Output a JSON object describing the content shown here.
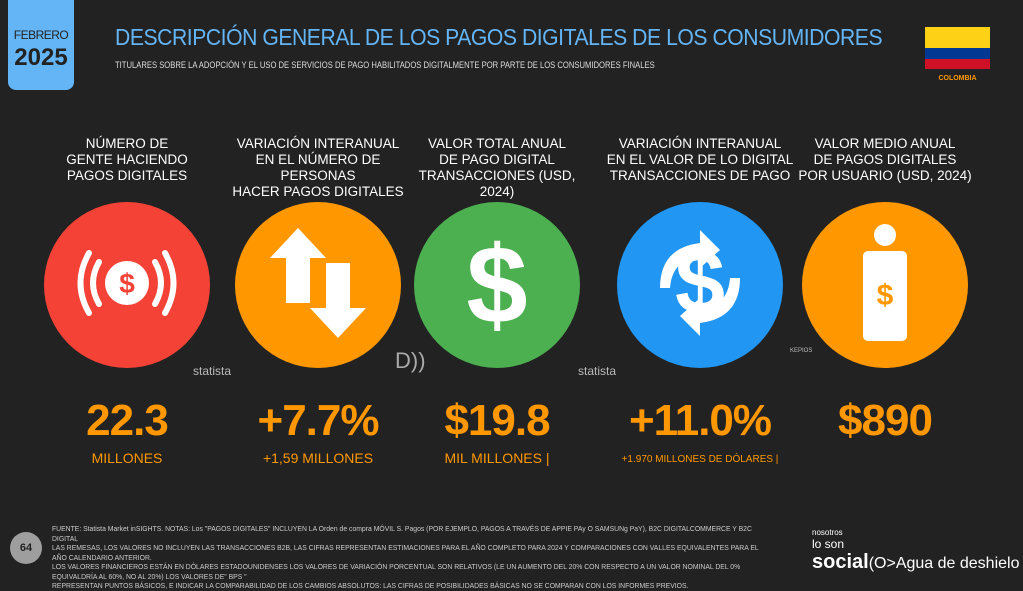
{
  "header": {
    "month": "FEBRERO",
    "year": "2025",
    "title": "DESCRIPCIÓN GENERAL DE LOS PAGOS DIGITALES DE LOS CONSUMIDORES",
    "subtitle": "TITULARES SOBRE LA ADOPCIÓN Y EL USO DE SERVICIOS DE PAGO HABILITADOS DIGITALMENTE POR PARTE DE LOS CONSUMIDORES FINALES",
    "country": "COLOMBIA"
  },
  "colors": {
    "red": "#f44336",
    "orange": "#ff9800",
    "green": "#4caf50",
    "blue": "#2196f3",
    "title": "#64b5f6"
  },
  "stats": [
    {
      "heading": [
        "NÚMERO DE",
        "GENTE HACIENDO",
        "PAGOS DIGITALES"
      ],
      "value": "22.3",
      "label": "MILLONES",
      "icon": "payment-signal-icon",
      "color": "#f44336"
    },
    {
      "heading": [
        "VARIACIÓN INTERANUAL",
        "EN EL NÚMERO DE PERSONAS",
        "HACER PAGOS DIGITALES"
      ],
      "value": "+7.7%",
      "label": "+1,59 MILLONES",
      "icon": "up-down-arrows-icon",
      "color": "#ff9800"
    },
    {
      "heading": [
        "VALOR TOTAL ANUAL",
        "DE PAGO DIGITAL",
        "TRANSACCIONES (USD, 2024)"
      ],
      "value": "$19.8",
      "label": "MIL MILLONES |",
      "icon": "dollar-icon",
      "color": "#4caf50"
    },
    {
      "heading": [
        "VARIACIÓN INTERANUAL",
        "EN EL VALOR DE LO DIGITAL",
        "TRANSACCIONES DE PAGO"
      ],
      "value": "+11.0%",
      "label": "+1.970 MILLONES DE DÓLARES |",
      "icon": "dollar-cycle-icon",
      "color": "#2196f3"
    },
    {
      "heading": [
        "VALOR MEDIO ANUAL",
        "DE PAGOS DIGITALES",
        "POR USUARIO (USD, 2024)"
      ],
      "value": "$890",
      "label": "",
      "icon": "person-dollar-icon",
      "color": "#ff9800"
    }
  ],
  "watermarks": {
    "statista": "statista",
    "kepios": "KEPIOS"
  },
  "footer": {
    "page": "64",
    "lines": [
      "FUENTE: Statista Market inSIGHTS. NOTAS: Los \"PAGOS DIGITALES\" INCLUYEN LA Orden de compra MÓVIL S. Pagos (POR EJEMPLO, PAGOS A TRAVÉS DE APPIE PAy O SAMSUNg PaY), B2C DIGITALCOMMERCE Y B2C DIGITAL",
      "LAS REMESAS, LOS VALORES NO INCLUYEN LAS TRANSACCIONES B2B, LAS CIFRAS REPRESENTAN ESTIMACIONES PARA EL AÑO COMPLETO PARA 2024 Y COMPARACIONES CON VALLES EQUIVALENTES PARA EL AÑO CALENDARIO ANTERIOR.",
      "LOS VALORES FINANCIEROS ESTÁN EN DÓLARES ESTADOUNIDENSES LOS VALORES DE VARIACIÓN PORCENTUAL SON RELATIVOS (LE UN AUMENTO DEL 20% CON RESPECTO A UN VALOR NOMINAL DEL 0% EQUIVALDRÍA AL 60%, NO AL 20%) LOS VALORES DE\" BPS \"",
      "REPRESENTAN PUNTOS BÁSICOS, E INDICAR LA COMPARABILIDAD DE LOS CAMBIOS ABSOLUTOS: LAS CIFRAS DE POSIBILIDADES BÁSICAS NO SE COMPARAN CON LOS INFORMES PREVIOS."
    ]
  },
  "brand": {
    "small": "nosotros",
    "mid": "lo son",
    "big": "social",
    "tail": "(O>Agua de deshielo"
  }
}
